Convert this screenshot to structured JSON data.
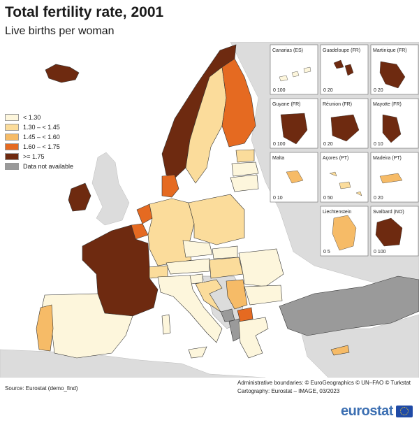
{
  "title": "Total fertility rate, 2001",
  "subtitle": "Live births per woman",
  "legend": [
    {
      "label": "< 1.30",
      "color": "#fdf6dc"
    },
    {
      "label": "1.30 – < 1.45",
      "color": "#fbdc9b"
    },
    {
      "label": "1.45 – < 1.60",
      "color": "#f6bb67"
    },
    {
      "label": "1.60 – < 1.75",
      "color": "#e56a21"
    },
    {
      "label": ">= 1.75",
      "color": "#6e2a10"
    },
    {
      "label": "Data not available",
      "color": "#9a9a9a"
    }
  ],
  "insets": [
    {
      "name": "Canarias (ES)",
      "scale": "0   100"
    },
    {
      "name": "Guadeloupe (FR)",
      "scale": "0   20"
    },
    {
      "name": "Martinique (FR)",
      "scale": "0   20"
    },
    {
      "name": "Guyane (FR)",
      "scale": "0   100"
    },
    {
      "name": "Réunion (FR)",
      "scale": "0   20"
    },
    {
      "name": "Mayotte (FR)",
      "scale": "0   10"
    },
    {
      "name": "Malta",
      "scale": "0   10"
    },
    {
      "name": "Açores (PT)",
      "scale": "0   50"
    },
    {
      "name": "Madeira (PT)",
      "scale": "0   20"
    },
    {
      "name": "Liechtenstein",
      "scale": "0   5"
    },
    {
      "name": "Svalbard (NO)",
      "scale": "0   100"
    }
  ],
  "source": "Source: Eurostat (demo_find)",
  "credits": {
    "line1": "Administrative boundaries: © EuroGeographics © UN–FAO © Turkstat",
    "line2": "Cartography: Eurostat – IMAGE, 03/2023"
  },
  "logo": "eurostat",
  "colors": {
    "sea": "#ffffff",
    "non_eu_land": "#dcdcdc",
    "border": "#333333"
  }
}
